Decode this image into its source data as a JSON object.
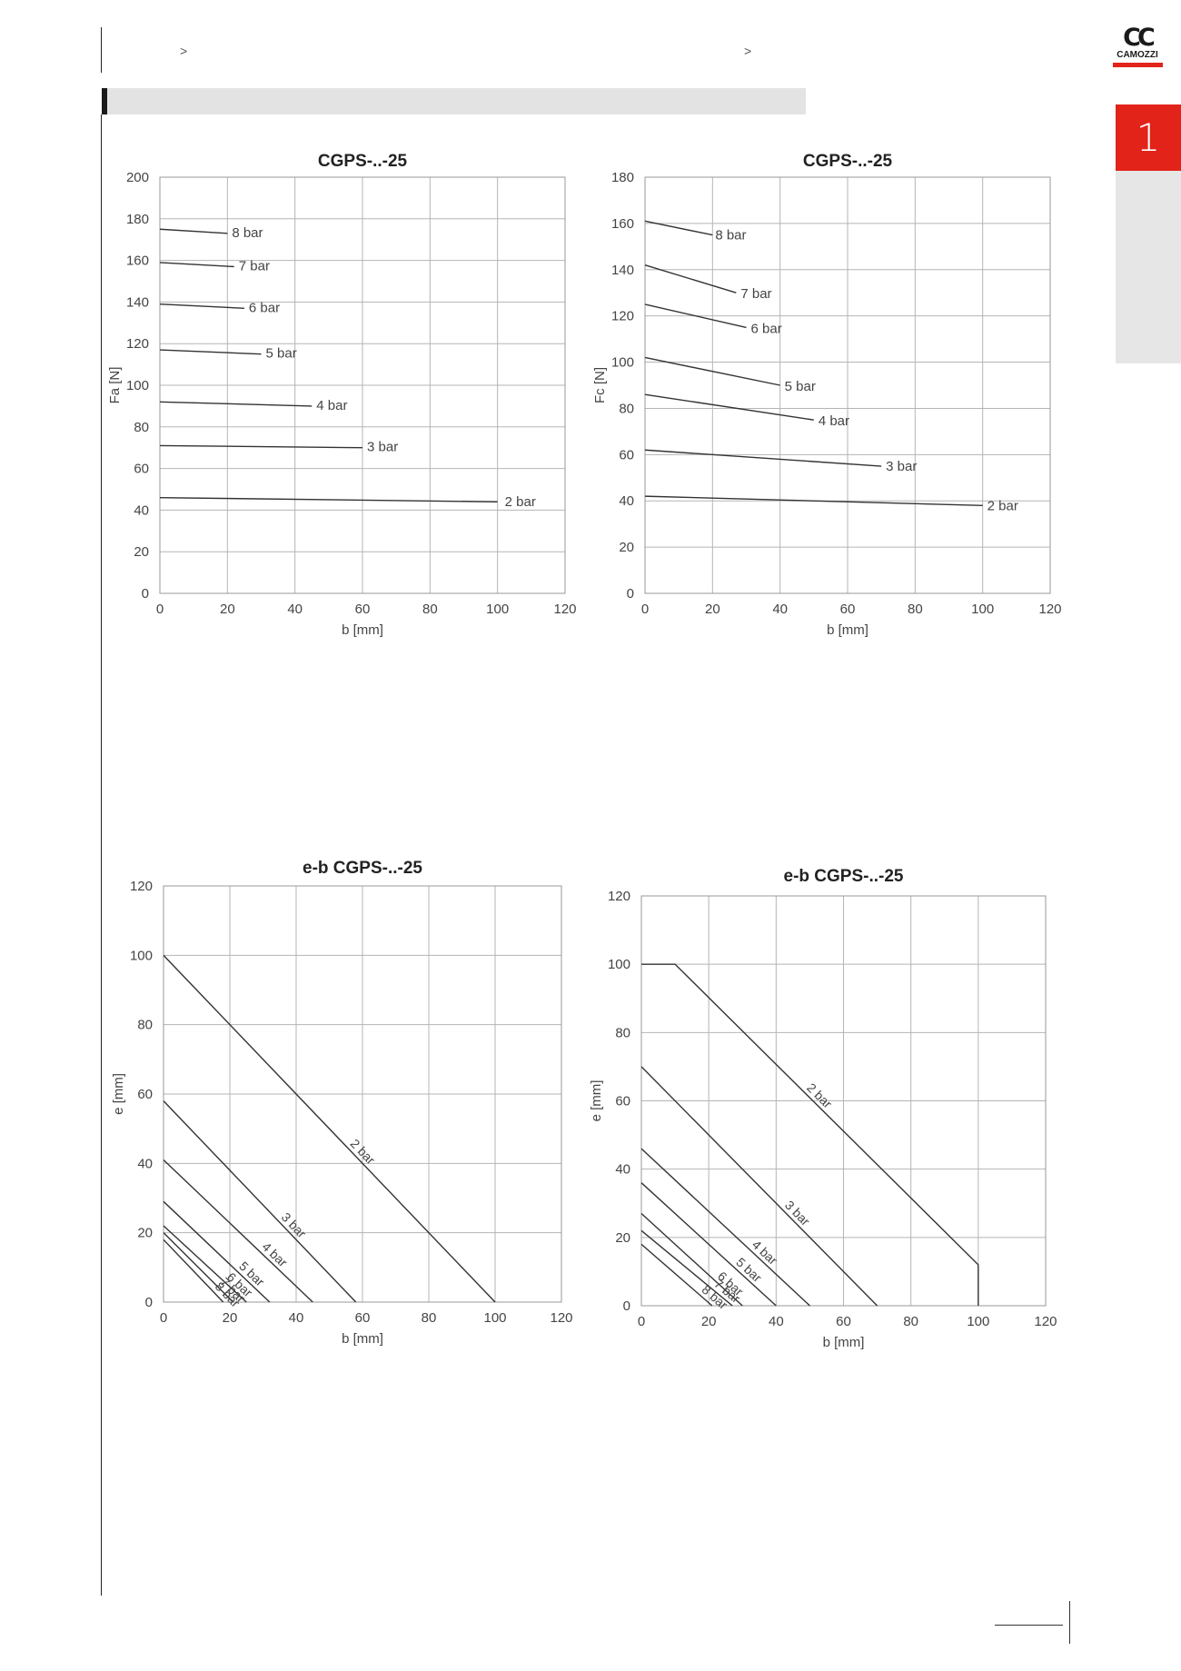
{
  "breadcrumb": {
    "sep1": ">",
    "sep2": ">"
  },
  "brand": {
    "mark": "CC",
    "name": "CAMOZZI",
    "accent": "#e2231a"
  },
  "section_tab": {
    "number": "1"
  },
  "chart_data": [
    {
      "type": "line",
      "title": "CGPS-..-25",
      "xlabel": "b [mm]",
      "ylabel": "Fa [N]",
      "xlim": [
        0,
        120
      ],
      "ylim": [
        0,
        200
      ],
      "xticks": [
        0,
        20,
        40,
        60,
        80,
        100,
        120
      ],
      "yticks": [
        0,
        20,
        40,
        60,
        80,
        100,
        120,
        140,
        160,
        180,
        200
      ],
      "grid": true,
      "series": [
        {
          "name": "8 bar",
          "x": [
            0,
            20
          ],
          "y": [
            175,
            173
          ]
        },
        {
          "name": "7 bar",
          "x": [
            0,
            22
          ],
          "y": [
            159,
            157
          ]
        },
        {
          "name": "6 bar",
          "x": [
            0,
            25
          ],
          "y": [
            139,
            137
          ]
        },
        {
          "name": "5 bar",
          "x": [
            0,
            30
          ],
          "y": [
            117,
            115
          ]
        },
        {
          "name": "4 bar",
          "x": [
            0,
            45
          ],
          "y": [
            92,
            90
          ]
        },
        {
          "name": "3 bar",
          "x": [
            0,
            60
          ],
          "y": [
            71,
            70
          ]
        },
        {
          "name": "2 bar",
          "x": [
            0,
            100
          ],
          "y": [
            46,
            44
          ]
        }
      ]
    },
    {
      "type": "line",
      "title": "CGPS-..-25",
      "xlabel": "b [mm]",
      "ylabel": "Fc [N]",
      "xlim": [
        0,
        120
      ],
      "ylim": [
        0,
        180
      ],
      "xticks": [
        0,
        20,
        40,
        60,
        80,
        100,
        120
      ],
      "yticks": [
        0,
        20,
        40,
        60,
        80,
        100,
        120,
        140,
        160,
        180
      ],
      "grid": true,
      "series": [
        {
          "name": "8 bar",
          "x": [
            0,
            20
          ],
          "y": [
            161,
            155
          ]
        },
        {
          "name": "7 bar",
          "x": [
            0,
            27
          ],
          "y": [
            142,
            130
          ]
        },
        {
          "name": "6 bar",
          "x": [
            0,
            30
          ],
          "y": [
            125,
            115
          ]
        },
        {
          "name": "5 bar",
          "x": [
            0,
            40
          ],
          "y": [
            102,
            90
          ]
        },
        {
          "name": "4 bar",
          "x": [
            0,
            50
          ],
          "y": [
            86,
            75
          ]
        },
        {
          "name": "3 bar",
          "x": [
            0,
            70
          ],
          "y": [
            62,
            55
          ]
        },
        {
          "name": "2 bar",
          "x": [
            0,
            100
          ],
          "y": [
            42,
            38
          ]
        }
      ]
    },
    {
      "type": "line",
      "title": "e-b CGPS-..-25",
      "xlabel": "b [mm]",
      "ylabel": "e [mm]",
      "xlim": [
        0,
        120
      ],
      "ylim": [
        0,
        120
      ],
      "xticks": [
        0,
        20,
        40,
        60,
        80,
        100,
        120
      ],
      "yticks": [
        0,
        20,
        40,
        60,
        80,
        100,
        120
      ],
      "grid": true,
      "series": [
        {
          "name": "2 bar",
          "x": [
            0,
            100
          ],
          "y": [
            100,
            0
          ]
        },
        {
          "name": "3 bar",
          "x": [
            0,
            58
          ],
          "y": [
            58,
            0
          ]
        },
        {
          "name": "4 bar",
          "x": [
            0,
            45
          ],
          "y": [
            41,
            0
          ]
        },
        {
          "name": "5 bar",
          "x": [
            0,
            32
          ],
          "y": [
            29,
            0
          ]
        },
        {
          "name": "6 bar",
          "x": [
            0,
            25
          ],
          "y": [
            22,
            0
          ]
        },
        {
          "name": "7 bar",
          "x": [
            0,
            21
          ],
          "y": [
            20,
            0
          ]
        },
        {
          "name": "8 bar",
          "x": [
            0,
            18
          ],
          "y": [
            18,
            0
          ]
        }
      ]
    },
    {
      "type": "line",
      "title": "e-b CGPS-..-25",
      "xlabel": "b [mm]",
      "ylabel": "e [mm]",
      "xlim": [
        0,
        120
      ],
      "ylim": [
        0,
        120
      ],
      "xticks": [
        0,
        20,
        40,
        60,
        80,
        100,
        120
      ],
      "yticks": [
        0,
        20,
        40,
        60,
        80,
        100,
        120
      ],
      "grid": true,
      "series": [
        {
          "name": "2 bar",
          "x": [
            0,
            10,
            100,
            100
          ],
          "y": [
            100,
            100,
            12,
            0
          ]
        },
        {
          "name": "3 bar",
          "x": [
            0,
            70
          ],
          "y": [
            70,
            0
          ]
        },
        {
          "name": "4 bar",
          "x": [
            0,
            50
          ],
          "y": [
            46,
            0
          ]
        },
        {
          "name": "5 bar",
          "x": [
            0,
            40
          ],
          "y": [
            36,
            0
          ]
        },
        {
          "name": "6 bar",
          "x": [
            0,
            30
          ],
          "y": [
            27,
            0
          ]
        },
        {
          "name": "7 bar",
          "x": [
            0,
            27
          ],
          "y": [
            22,
            0
          ]
        },
        {
          "name": "8 bar",
          "x": [
            0,
            21
          ],
          "y": [
            18,
            0
          ]
        }
      ]
    }
  ]
}
